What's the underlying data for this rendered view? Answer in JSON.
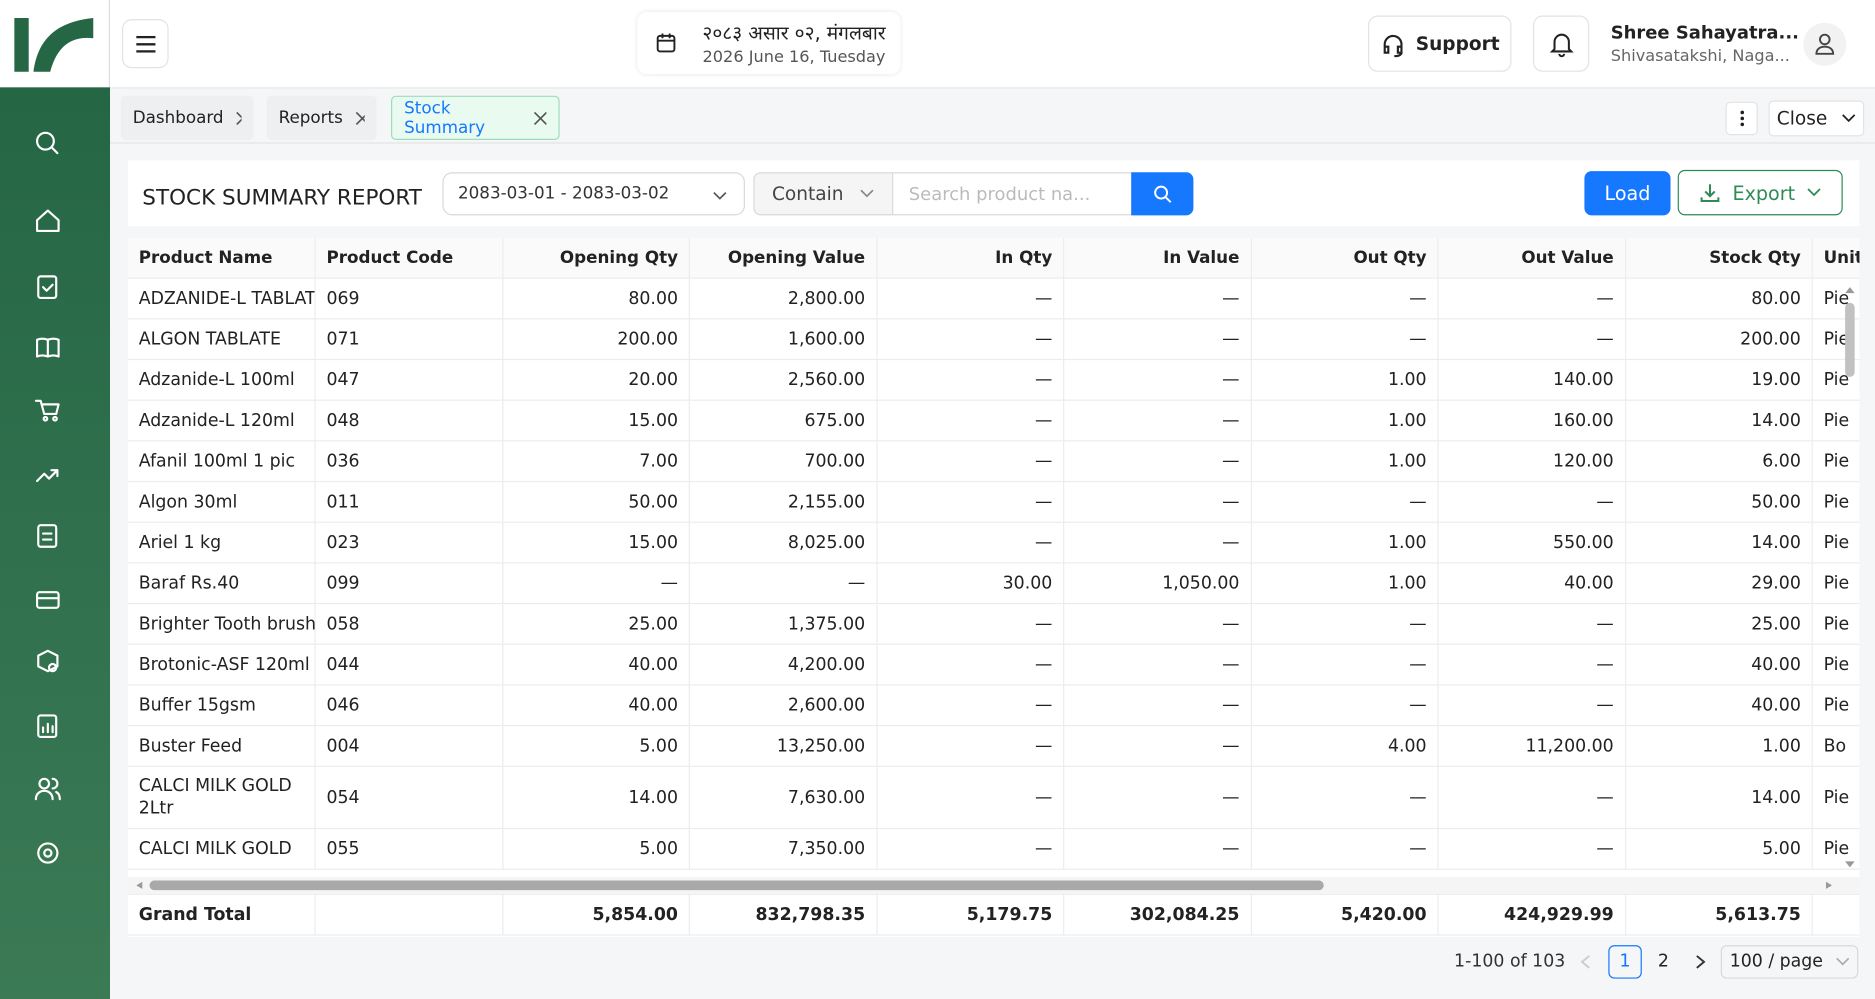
{
  "header": {
    "date_np": "२०८३ असार ०२, मंगलबार",
    "date_en": "2026 June 16, Tuesday",
    "support": "Support",
    "user_name": "Shree Sahayatra...",
    "user_location": "Shivasatakshi, Naga..."
  },
  "tabs": [
    "Dashboard",
    "Reports",
    "Stock Summary"
  ],
  "close": "Close",
  "report": {
    "title": "STOCK SUMMARY REPORT",
    "date_range": "2083-03-01 - 2083-03-02",
    "filter": "Contain",
    "search_placeholder": "Search product na...",
    "load": "Load",
    "export": "Export"
  },
  "table": {
    "columns": [
      "Product Name",
      "Product Code",
      "Opening Qty",
      "Opening Value",
      "In Qty",
      "In Value",
      "Out Qty",
      "Out Value",
      "Stock Qty",
      "Unit"
    ],
    "rows": [
      [
        "ADZANIDE-L TABLATE",
        "069",
        "80.00",
        "2,800.00",
        "—",
        "—",
        "—",
        "—",
        "80.00",
        "Pie"
      ],
      [
        "ALGON TABLATE",
        "071",
        "200.00",
        "1,600.00",
        "—",
        "—",
        "—",
        "—",
        "200.00",
        "Pie"
      ],
      [
        "Adzanide-L 100ml",
        "047",
        "20.00",
        "2,560.00",
        "—",
        "—",
        "1.00",
        "140.00",
        "19.00",
        "Pie"
      ],
      [
        "Adzanide-L 120ml",
        "048",
        "15.00",
        "675.00",
        "—",
        "—",
        "1.00",
        "160.00",
        "14.00",
        "Pie"
      ],
      [
        "Afanil 100ml 1 pic",
        "036",
        "7.00",
        "700.00",
        "—",
        "—",
        "1.00",
        "120.00",
        "6.00",
        "Pie"
      ],
      [
        "Algon 30ml",
        "011",
        "50.00",
        "2,155.00",
        "—",
        "—",
        "—",
        "—",
        "50.00",
        "Pie"
      ],
      [
        "Ariel 1 kg",
        "023",
        "15.00",
        "8,025.00",
        "—",
        "—",
        "1.00",
        "550.00",
        "14.00",
        "Pie"
      ],
      [
        "Baraf Rs.40",
        "099",
        "—",
        "—",
        "30.00",
        "1,050.00",
        "1.00",
        "40.00",
        "29.00",
        "Pie"
      ],
      [
        "Brighter Tooth brush",
        "058",
        "25.00",
        "1,375.00",
        "—",
        "—",
        "—",
        "—",
        "25.00",
        "Pie"
      ],
      [
        "Brotonic-ASF 120ml",
        "044",
        "40.00",
        "4,200.00",
        "—",
        "—",
        "—",
        "—",
        "40.00",
        "Pie"
      ],
      [
        "Buffer 15gsm",
        "046",
        "40.00",
        "2,600.00",
        "—",
        "—",
        "—",
        "—",
        "40.00",
        "Pie"
      ],
      [
        "Buster Feed",
        "004",
        "5.00",
        "13,250.00",
        "—",
        "—",
        "4.00",
        "11,200.00",
        "1.00",
        "Bo"
      ],
      [
        "CALCI MILK GOLD 2Ltr",
        "054",
        "14.00",
        "7,630.00",
        "—",
        "—",
        "—",
        "—",
        "14.00",
        "Pie"
      ],
      [
        "CALCI MILK GOLD",
        "055",
        "5.00",
        "7,350.00",
        "—",
        "—",
        "—",
        "—",
        "5.00",
        "Pie"
      ]
    ],
    "total": {
      "label": "Grand Total",
      "values": [
        "5,854.00",
        "832,798.35",
        "5,179.75",
        "302,084.25",
        "5,420.00",
        "424,929.99",
        "5,613.75"
      ]
    }
  },
  "pagination": {
    "range": "1-100 of 103",
    "pages": [
      "1",
      "2"
    ],
    "page_size": "100 / page"
  }
}
